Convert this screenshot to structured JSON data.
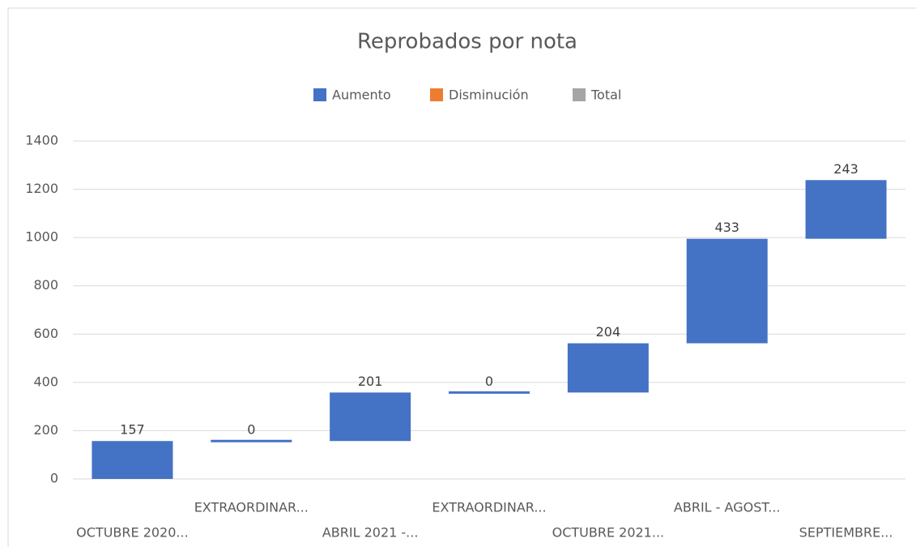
{
  "chart_data": {
    "type": "waterfall",
    "title": "Reprobados por nota",
    "legend": [
      {
        "name": "Aumento",
        "color": "#4472c4"
      },
      {
        "name": "Disminución",
        "color": "#ed7d31"
      },
      {
        "name": "Total",
        "color": "#a5a5a5"
      }
    ],
    "categories": [
      "OCTUBRE 2020...",
      "EXTRAORDINAR...",
      "ABRIL 2021  -...",
      "EXTRAORDINAR...",
      "OCTUBRE 2021...",
      "ABRIL - AGOST...",
      "SEPTIEMBRE..."
    ],
    "values": [
      157,
      0,
      201,
      0,
      204,
      433,
      243
    ],
    "ylim": [
      0,
      1400
    ],
    "yticks": [
      0,
      200,
      400,
      600,
      800,
      1000,
      1200,
      1400
    ],
    "grid": true
  }
}
